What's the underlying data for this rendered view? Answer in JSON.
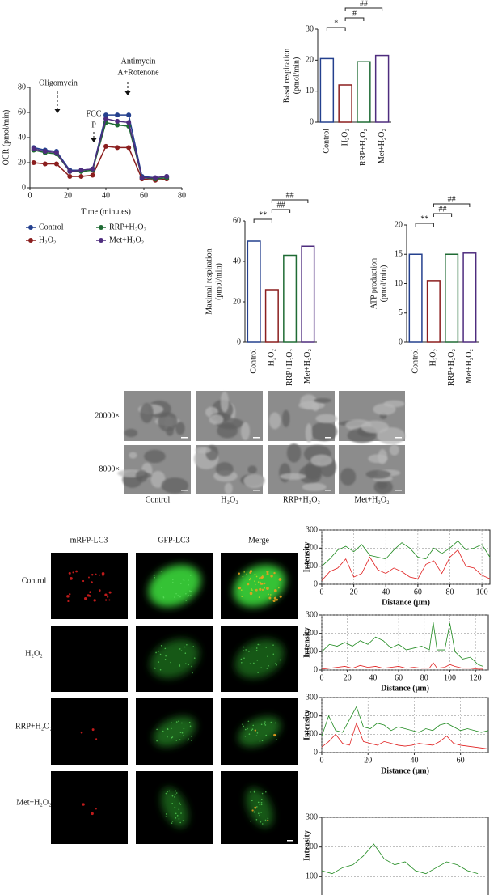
{
  "chart_data": [
    {
      "type": "line",
      "xlabel": "Time (minutes)",
      "ylabel": "OCR (pmol/min)",
      "markers": true,
      "x": [
        2,
        8,
        14,
        21,
        27,
        33,
        40,
        46,
        52,
        59,
        66,
        72
      ],
      "xlim": [
        0,
        80
      ],
      "xticks": [
        0,
        20,
        40,
        60,
        80
      ],
      "ylim": [
        0,
        80
      ],
      "yticks": [
        0,
        20,
        40,
        60,
        80
      ],
      "annotations": [
        [
          "Oligomycin"
        ],
        [
          "FCC",
          "P"
        ],
        [
          "Antimycin",
          "A+Rotenone"
        ]
      ],
      "series": [
        {
          "name": "Control",
          "color": "#24408e",
          "values": [
            32,
            30,
            29,
            14,
            14,
            15,
            58,
            58,
            58,
            9,
            8,
            9
          ]
        },
        {
          "name": "H₂O₂",
          "color": "#8b1e1e",
          "values": [
            20,
            19,
            19,
            9,
            9,
            10,
            33,
            32,
            32,
            7,
            6,
            7
          ]
        },
        {
          "name": "RRP+H₂O₂",
          "color": "#1f6b34",
          "values": [
            30,
            28,
            27,
            13,
            13,
            14,
            52,
            50,
            49,
            8,
            7,
            8
          ]
        },
        {
          "name": "Met+H₂O₂",
          "color": "#4e2c7e",
          "values": [
            31,
            29,
            28,
            13,
            14,
            15,
            55,
            53,
            52,
            8,
            8,
            9
          ]
        }
      ]
    },
    {
      "type": "bar",
      "ylabel": [
        "Basal respiration",
        "(pmol/min)"
      ],
      "categories": [
        "Control",
        "H₂O₂",
        "RRP+H₂O₂",
        "Met+H₂O₂"
      ],
      "values": [
        20.5,
        12,
        19.5,
        21.5
      ],
      "colors": [
        "#24408e",
        "#8b1e1e",
        "#1f6b34",
        "#4e2c7e"
      ],
      "ylim": [
        0,
        30
      ],
      "yticks": [
        0,
        10,
        20,
        30
      ],
      "significance": [
        {
          "from": 0,
          "to": 1,
          "label": "*"
        },
        {
          "from": 1,
          "to": 2,
          "label": "#"
        },
        {
          "from": 1,
          "to": 3,
          "label": "##"
        }
      ]
    },
    {
      "type": "bar",
      "ylabel": [
        "Maximal respiration",
        "(pmol/min)"
      ],
      "categories": [
        "Control",
        "H₂O₂",
        "RRP+H₂O₂",
        "Met+H₂O₂"
      ],
      "values": [
        50,
        26,
        43,
        47.5
      ],
      "colors": [
        "#24408e",
        "#8b1e1e",
        "#1f6b34",
        "#4e2c7e"
      ],
      "ylim": [
        0,
        60
      ],
      "yticks": [
        0,
        20,
        40,
        60
      ],
      "significance": [
        {
          "from": 0,
          "to": 1,
          "label": "**"
        },
        {
          "from": 1,
          "to": 2,
          "label": "##"
        },
        {
          "from": 1,
          "to": 3,
          "label": "##"
        }
      ]
    },
    {
      "type": "bar",
      "ylabel": [
        "ATP production",
        "(pmol/min)"
      ],
      "categories": [
        "Control",
        "H₂O₂",
        "RRP+H₂O₂",
        "Met+H₂O₂"
      ],
      "values": [
        15,
        10.5,
        15,
        15.2
      ],
      "colors": [
        "#24408e",
        "#8b1e1e",
        "#1f6b34",
        "#4e2c7e"
      ],
      "ylim": [
        0,
        20
      ],
      "yticks": [
        0,
        5,
        10,
        15,
        20
      ],
      "significance": [
        {
          "from": 0,
          "to": 1,
          "label": "**"
        },
        {
          "from": 1,
          "to": 2,
          "label": "##"
        },
        {
          "from": 1,
          "to": 3,
          "label": "##"
        }
      ]
    },
    {
      "type": "line",
      "xlabel": "Distance (μm)",
      "ylabel": "Intensity",
      "grid": true,
      "frame": true,
      "x": [
        0,
        5,
        10,
        15,
        20,
        25,
        30,
        35,
        40,
        45,
        50,
        55,
        60,
        65,
        70,
        75,
        80,
        85,
        90,
        95,
        100,
        105
      ],
      "xlim": [
        0,
        105
      ],
      "xticks": [
        0,
        20,
        40,
        60,
        80,
        100
      ],
      "ylim": [
        0,
        300
      ],
      "yticks": [
        0,
        100,
        200,
        300
      ],
      "series": [
        {
          "color": "#1f8a1f",
          "values": [
            100,
            140,
            190,
            210,
            180,
            220,
            160,
            150,
            140,
            190,
            230,
            200,
            150,
            140,
            200,
            170,
            200,
            240,
            190,
            200,
            220,
            150
          ]
        },
        {
          "color": "#e02020",
          "values": [
            20,
            70,
            90,
            140,
            40,
            60,
            150,
            80,
            60,
            90,
            70,
            40,
            30,
            110,
            130,
            60,
            150,
            190,
            100,
            90,
            50,
            30
          ]
        }
      ]
    },
    {
      "type": "line",
      "xlabel": "Distance (μm)",
      "ylabel": "Intensity",
      "grid": true,
      "frame": true,
      "x": [
        0,
        6,
        12,
        18,
        24,
        30,
        36,
        42,
        48,
        54,
        60,
        66,
        72,
        78,
        84,
        87,
        90,
        96,
        100,
        104,
        110,
        116,
        122,
        126
      ],
      "xlim": [
        0,
        130
      ],
      "xticks": [
        0,
        20,
        40,
        60,
        80,
        100,
        120
      ],
      "ylim": [
        0,
        300
      ],
      "yticks": [
        0,
        100,
        200,
        300
      ],
      "series": [
        {
          "color": "#1f8a1f",
          "values": [
            100,
            140,
            130,
            150,
            130,
            160,
            140,
            180,
            160,
            120,
            140,
            110,
            120,
            130,
            110,
            260,
            110,
            110,
            255,
            100,
            60,
            70,
            30,
            20
          ]
        },
        {
          "color": "#e02020",
          "values": [
            5,
            10,
            15,
            20,
            10,
            25,
            15,
            20,
            10,
            15,
            20,
            10,
            15,
            10,
            10,
            40,
            10,
            15,
            30,
            20,
            10,
            10,
            5,
            5
          ]
        }
      ]
    },
    {
      "type": "line",
      "xlabel": "Distance (μm)",
      "ylabel": "Intensity",
      "grid": true,
      "frame": true,
      "x": [
        0,
        3,
        6,
        9,
        12,
        15,
        18,
        21,
        24,
        27,
        30,
        33,
        36,
        39,
        42,
        45,
        48,
        51,
        54,
        57,
        60,
        63,
        66,
        69,
        72
      ],
      "xlim": [
        0,
        72
      ],
      "xticks": [
        0,
        20,
        40,
        60
      ],
      "ylim": [
        0,
        300
      ],
      "yticks": [
        0,
        100,
        200,
        300
      ],
      "series": [
        {
          "color": "#1f8a1f",
          "values": [
            90,
            200,
            120,
            110,
            180,
            250,
            140,
            130,
            160,
            150,
            120,
            140,
            130,
            120,
            110,
            130,
            120,
            150,
            160,
            140,
            120,
            130,
            120,
            110,
            120
          ]
        },
        {
          "color": "#e02020",
          "values": [
            30,
            60,
            100,
            50,
            40,
            160,
            60,
            50,
            40,
            60,
            50,
            40,
            35,
            40,
            50,
            45,
            40,
            60,
            90,
            50,
            40,
            35,
            30,
            25,
            20
          ]
        }
      ]
    },
    {
      "type": "line",
      "ylabel": "Intensity",
      "grid": true,
      "frame": true,
      "x": [
        0,
        4,
        8,
        12,
        16,
        20,
        24,
        28,
        32,
        36,
        40,
        44,
        48,
        52,
        56,
        60
      ],
      "xlim": [
        0,
        64
      ],
      "ylim": [
        0,
        300
      ],
      "yticks": [
        100,
        200,
        300
      ],
      "series": [
        {
          "color": "#1f8a1f",
          "values": [
            120,
            110,
            130,
            140,
            170,
            210,
            160,
            140,
            150,
            120,
            110,
            130,
            150,
            140,
            120,
            110
          ]
        }
      ]
    }
  ],
  "tem": {
    "row_labels": [
      "20000×",
      "8000×"
    ],
    "column_labels": [
      "Control",
      "H₂O₂",
      "RRP+H₂O₂",
      "Met+H₂O₂"
    ]
  },
  "confocal": {
    "column_labels": [
      "mRFP-LC3",
      "GFP-LC3",
      "Merge"
    ],
    "row_labels": [
      "Control",
      "H₂O₂",
      "RRP+H₂O₂",
      "Met+H₂O₂"
    ]
  }
}
